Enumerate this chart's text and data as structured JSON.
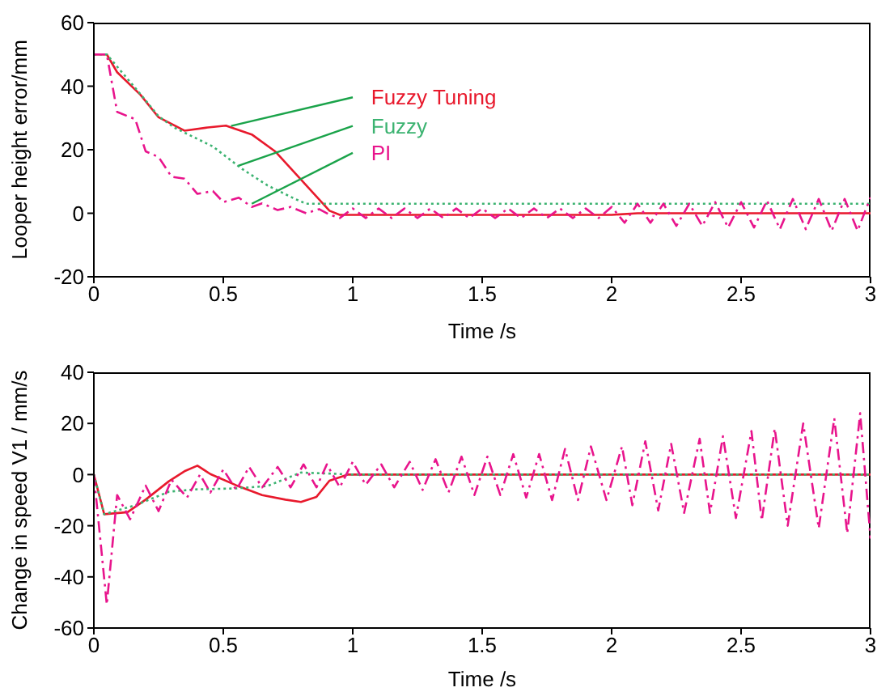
{
  "chart_data": [
    {
      "type": "line",
      "xlabel": "Time /s",
      "ylabel": "Looper height error/mm",
      "xlim": [
        0,
        3
      ],
      "xticks": [
        0,
        0.5,
        1,
        1.5,
        2,
        2.5,
        3
      ],
      "ylim": [
        -20,
        60
      ],
      "yticks": [
        -20,
        0,
        20,
        40,
        60
      ],
      "series": [
        {
          "name": "Fuzzy Tuning",
          "color": "#e8192c",
          "line_style": "solid",
          "x": [
            0,
            0.05,
            0.09,
            0.18,
            0.25,
            0.35,
            0.44,
            0.51,
            0.61,
            0.7,
            0.8,
            0.91,
            0.95,
            1.0,
            2.0,
            2.1,
            3.0
          ],
          "values": [
            50,
            50,
            44.4,
            37.3,
            30.2,
            26,
            27,
            27.6,
            24.8,
            19.5,
            10.6,
            0.8,
            -0.5,
            -0.5,
            -0.5,
            0,
            0
          ]
        },
        {
          "name": "Fuzzy",
          "color": "#3cb371",
          "line_style": "dotted",
          "x": [
            0,
            0.05,
            0.18,
            0.25,
            0.31,
            0.46,
            0.57,
            0.67,
            0.78,
            0.82,
            3.0
          ],
          "values": [
            50,
            50,
            37.5,
            30.5,
            27,
            21,
            14.1,
            8.8,
            4.4,
            3,
            3
          ]
        },
        {
          "name": "PI",
          "color": "#e8148c",
          "line_style": "dashed",
          "x": [
            0,
            0.05,
            0.09,
            0.16,
            0.2,
            0.25,
            0.3,
            0.35,
            0.4,
            0.46,
            0.5,
            0.56,
            0.61,
            0.65,
            0.71,
            0.76,
            0.82,
            0.87,
            0.91,
            0.95,
            1.0,
            1.05,
            1.1,
            1.15,
            1.2,
            1.25,
            1.3,
            1.35,
            1.4,
            1.45,
            1.5,
            1.55,
            1.6,
            1.65,
            1.7,
            1.75,
            1.8,
            1.85,
            1.9,
            1.95,
            2.0,
            2.05,
            2.1,
            2.15,
            2.2,
            2.25,
            2.3,
            2.35,
            2.4,
            2.45,
            2.5,
            2.55,
            2.6,
            2.65,
            2.7,
            2.75,
            2.8,
            2.85,
            2.9,
            2.95,
            3.0
          ],
          "values": [
            50,
            50,
            31.9,
            29.6,
            19.5,
            17.7,
            11.5,
            10.9,
            6.1,
            7,
            3.5,
            4.9,
            2,
            3.1,
            1,
            2,
            0,
            1.3,
            -0.4,
            -1.5,
            1.5,
            -1.5,
            1.5,
            -1.5,
            1.5,
            -1.5,
            1.5,
            -1.5,
            1.5,
            -1.5,
            1.5,
            -1.5,
            1.5,
            -1.5,
            1.5,
            -1.5,
            1.5,
            -1.5,
            1.5,
            -1.5,
            2,
            -3,
            3,
            -3,
            3,
            -4,
            3,
            -4,
            3.5,
            -4.5,
            3.5,
            -4.5,
            4,
            -5,
            4.5,
            -5,
            4.5,
            -5.5,
            4.5,
            -5.5,
            5
          ]
        }
      ]
    },
    {
      "type": "line",
      "xlabel": "Time /s",
      "ylabel": "Change in speed V1 / mm/s",
      "xlim": [
        0,
        3
      ],
      "xticks": [
        0,
        0.5,
        1,
        1.5,
        2,
        2.5,
        3
      ],
      "ylim": [
        -60,
        40
      ],
      "yticks": [
        -60,
        -40,
        -20,
        0,
        20,
        40
      ],
      "series": [
        {
          "color": "#e8192c",
          "line_style": "solid",
          "x": [
            0,
            0.04,
            0.13,
            0.2,
            0.29,
            0.35,
            0.4,
            0.45,
            0.55,
            0.65,
            0.74,
            0.8,
            0.86,
            0.91,
            0.98,
            3.0
          ],
          "values": [
            0,
            -15.5,
            -14.7,
            -9.8,
            -2.6,
            1.3,
            3.5,
            0.2,
            -4.2,
            -8,
            -9.8,
            -10.7,
            -8.7,
            -2.4,
            0,
            0
          ]
        },
        {
          "color": "#3cb371",
          "line_style": "dotted",
          "x": [
            0,
            0.04,
            0.16,
            0.29,
            0.39,
            0.55,
            0.67,
            0.8,
            0.91,
            1.0,
            3.0
          ],
          "values": [
            0,
            -15.5,
            -12,
            -6.7,
            -5.8,
            -5.4,
            -4.5,
            0.8,
            0.4,
            0,
            0
          ]
        },
        {
          "color": "#e8148c",
          "line_style": "dashed",
          "x": [
            0,
            0.05,
            0.09,
            0.14,
            0.2,
            0.25,
            0.3,
            0.36,
            0.41,
            0.45,
            0.5,
            0.55,
            0.6,
            0.65,
            0.71,
            0.76,
            0.81,
            0.86,
            0.9,
            0.95,
            1.0,
            1.05,
            1.11,
            1.16,
            1.22,
            1.27,
            1.32,
            1.37,
            1.42,
            1.47,
            1.52,
            1.57,
            1.62,
            1.67,
            1.72,
            1.77,
            1.82,
            1.87,
            1.92,
            1.98,
            2.04,
            2.08,
            2.13,
            2.18,
            2.23,
            2.28,
            2.34,
            2.38,
            2.43,
            2.48,
            2.54,
            2.58,
            2.63,
            2.68,
            2.74,
            2.8,
            2.86,
            2.91,
            2.96,
            3.0
          ],
          "values": [
            0,
            -50.8,
            -8,
            -17.5,
            -4.3,
            -14.3,
            -2,
            -9,
            0,
            -7,
            2,
            -6,
            3,
            -5,
            3,
            -5,
            4,
            -5,
            4,
            -5,
            5,
            -4,
            4,
            -5,
            5,
            -6,
            6,
            -7,
            7,
            -8,
            7,
            -8,
            8,
            -9,
            8,
            -10,
            10,
            -10,
            11,
            -10,
            11,
            -12,
            13,
            -14,
            12,
            -15,
            14,
            -15,
            15,
            -17,
            17,
            -18,
            18,
            -20,
            20,
            -21,
            22,
            -23,
            24,
            -25
          ]
        }
      ]
    }
  ]
}
